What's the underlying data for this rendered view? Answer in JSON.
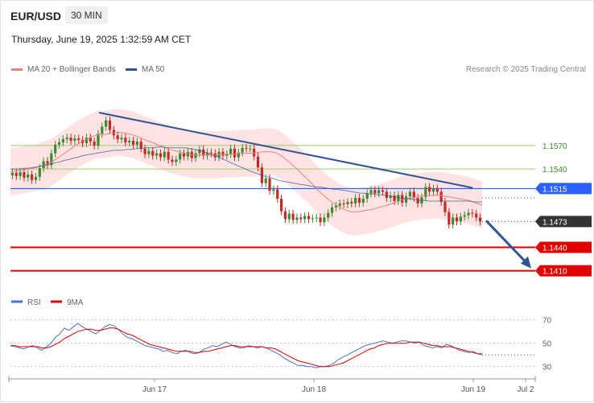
{
  "header": {
    "symbol": "EUR/USD",
    "timeframe": "30 MIN",
    "datetime": "Thursday, June 19, 2025 1:32:59 AM CET"
  },
  "legend": {
    "ma20_label": "MA 20 + Bollinger Bands",
    "ma50_label": "MA 50",
    "credit": "Research © 2025 Trading Central"
  },
  "colors": {
    "ma20": "#f08080",
    "ma50": "#2f5597",
    "bull": "#3a8a2e",
    "bear": "#c62828",
    "resistance": "#9ccc65",
    "pivot": "#2962ff",
    "support": "#e00000",
    "rsi": "#4a72d8",
    "rsi_ma": "#e00000",
    "trendline": "#2f5597"
  },
  "chart_data": [
    {
      "type": "line",
      "title": "",
      "x_tick_labels": [
        "Jun 17",
        "Jun 18",
        "Jun 19",
        "Jul 2"
      ],
      "ylim": [
        1.1385,
        1.165
      ],
      "levels": [
        {
          "name": "resistance_2",
          "value": 1.157,
          "label": "1.1570"
        },
        {
          "name": "resistance_1",
          "value": 1.154,
          "label": "1.1540"
        },
        {
          "name": "pivot",
          "value": 1.1515,
          "label": "1.1515"
        },
        {
          "name": "last_price",
          "value": 1.1473,
          "label": "1.1473"
        },
        {
          "name": "support_1",
          "value": 1.144,
          "label": "1.1440"
        },
        {
          "name": "support_2",
          "value": 1.141,
          "label": "1.1410"
        }
      ],
      "closes": [
        1.1535,
        1.1531,
        1.1536,
        1.1529,
        1.1533,
        1.1526,
        1.153,
        1.1541,
        1.155,
        1.1545,
        1.156,
        1.1571,
        1.1574,
        1.1578,
        1.158,
        1.1576,
        1.1579,
        1.1577,
        1.1573,
        1.158,
        1.1575,
        1.157,
        1.1585,
        1.1594,
        1.1602,
        1.159,
        1.1583,
        1.1578,
        1.158,
        1.1574,
        1.1576,
        1.1571,
        1.1575,
        1.1566,
        1.1559,
        1.1563,
        1.1557,
        1.156,
        1.1555,
        1.1562,
        1.1552,
        1.1549,
        1.1552,
        1.156,
        1.1556,
        1.1562,
        1.1554,
        1.156,
        1.1565,
        1.1557,
        1.1561,
        1.156,
        1.1555,
        1.1562,
        1.1557,
        1.1559,
        1.1566,
        1.1555,
        1.1561,
        1.1567,
        1.1566,
        1.1566,
        1.1556,
        1.1542,
        1.1522,
        1.1528,
        1.1512,
        1.1514,
        1.1502,
        1.1486,
        1.1476,
        1.1483,
        1.1475,
        1.1478,
        1.1476,
        1.148,
        1.1476,
        1.1477,
        1.1478,
        1.1472,
        1.1478,
        1.1484,
        1.1491,
        1.1493,
        1.1496,
        1.1495,
        1.1498,
        1.1496,
        1.1503,
        1.1497,
        1.1502,
        1.1509,
        1.1513,
        1.1509,
        1.1513,
        1.1511,
        1.1503,
        1.1506,
        1.1499,
        1.1507,
        1.1497,
        1.1505,
        1.1511,
        1.1503,
        1.1496,
        1.1504,
        1.1517,
        1.1511,
        1.1515,
        1.1511,
        1.1498,
        1.1485,
        1.1469,
        1.1478,
        1.1473,
        1.1479,
        1.1481,
        1.1484,
        1.1483,
        1.1478,
        1.1473
      ],
      "ma20": [
        1.1536,
        1.1537,
        1.1538,
        1.1539,
        1.154,
        1.1541,
        1.1542,
        1.1544,
        1.1546,
        1.1548,
        1.1552,
        1.1556,
        1.156,
        1.1564,
        1.1568,
        1.1572,
        1.1575,
        1.1578,
        1.1581,
        1.1583,
        1.1584,
        1.1584,
        1.1585,
        1.1586,
        1.1587,
        1.1586,
        1.1585,
        1.1584,
        1.1582,
        1.158,
        1.1577,
        1.1575,
        1.1573,
        1.157,
        1.1568,
        1.1566,
        1.1564,
        1.1563,
        1.1561,
        1.156,
        1.1559,
        1.1558,
        1.1558,
        1.1558,
        1.1558,
        1.1558,
        1.1558,
        1.1559,
        1.1559,
        1.1559,
        1.1559,
        1.156,
        1.156,
        1.156,
        1.156,
        1.1561,
        1.1562,
        1.1562,
        1.1562,
        1.1561,
        1.1558,
        1.1554,
        1.1549,
        1.1544,
        1.1539,
        1.1533,
        1.1528,
        1.1522,
        1.1516,
        1.151,
        1.1505,
        1.15,
        1.1496,
        1.1492,
        1.1489,
        1.1487,
        1.1485,
        1.1485,
        1.1486,
        1.1487,
        1.1488,
        1.1489,
        1.1491,
        1.1492,
        1.1494,
        1.1496,
        1.1498,
        1.15,
        1.1502,
        1.1503,
        1.1504,
        1.1505,
        1.1506,
        1.1506,
        1.1506,
        1.1507,
        1.1506,
        1.1505,
        1.1504,
        1.1503,
        1.1502,
        1.1501,
        1.15,
        1.1498,
        1.1496,
        1.1494
      ],
      "ma50": [
        1.154,
        1.154,
        1.154,
        1.1541,
        1.1541,
        1.1542,
        1.1543,
        1.1544,
        1.1545,
        1.1546,
        1.1548,
        1.1549,
        1.1551,
        1.1552,
        1.1554,
        1.1555,
        1.1557,
        1.1558,
        1.1559,
        1.156,
        1.1561,
        1.1562,
        1.1563,
        1.1564,
        1.1564,
        1.1564,
        1.1565,
        1.1565,
        1.1566,
        1.1566,
        1.1567,
        1.1567,
        1.1567,
        1.1568,
        1.1568,
        1.1567,
        1.1567,
        1.1567,
        1.1567,
        1.1567,
        1.1566,
        1.1565,
        1.1564,
        1.1562,
        1.156,
        1.1558,
        1.1556,
        1.1553,
        1.1551,
        1.1548,
        1.1546,
        1.1543,
        1.1541,
        1.1538,
        1.1536,
        1.1534,
        1.1532,
        1.153,
        1.1529,
        1.1527,
        1.1525,
        1.1524,
        1.1523,
        1.1522,
        1.1521,
        1.152,
        1.1519,
        1.1518,
        1.1517,
        1.1517,
        1.1516,
        1.1515,
        1.1514,
        1.1514,
        1.1513,
        1.1512,
        1.1511,
        1.151,
        1.1509,
        1.1509,
        1.1508,
        1.1508,
        1.1507,
        1.1507,
        1.1506,
        1.1505,
        1.1504,
        1.1503,
        1.1502,
        1.1502,
        1.1501,
        1.15,
        1.15,
        1.1499,
        1.1499,
        1.1499,
        1.1499,
        1.1499,
        1.1499,
        1.1499,
        1.1499,
        1.1499,
        1.1499,
        1.1498,
        1.1498,
        1.1498
      ],
      "bollinger_width": 0.003,
      "trendline": [
        {
          "x": 0.1875,
          "y": 1.1612
        },
        {
          "x": 0.98,
          "y": 1.1516
        }
      ],
      "projection_target": 1.141
    },
    {
      "type": "line",
      "name": "RSI",
      "legend": [
        "RSI",
        "9MA"
      ],
      "ylim": [
        25,
        78
      ],
      "y_ticks": [
        70,
        50,
        30
      ],
      "rsi": [
        48,
        47,
        46,
        45,
        47,
        48,
        46,
        44,
        47,
        50,
        55,
        58,
        63,
        61,
        64,
        67,
        64,
        62,
        60,
        58,
        61,
        64,
        66,
        65,
        62,
        58,
        55,
        54,
        52,
        50,
        48,
        47,
        46,
        45,
        43,
        44,
        42,
        41,
        43,
        44,
        42,
        41,
        42,
        45,
        46,
        48,
        47,
        49,
        51,
        49,
        47,
        46,
        46,
        48,
        47,
        46,
        47,
        46,
        44,
        42,
        40,
        37,
        35,
        33,
        31,
        31,
        30,
        30,
        29,
        30,
        30,
        31,
        33,
        36,
        38,
        40,
        42,
        44,
        46,
        48,
        49,
        50,
        51,
        52,
        51,
        50,
        51,
        52,
        52,
        51,
        50,
        51,
        48,
        47,
        46,
        47,
        46,
        49,
        48,
        46,
        44,
        43,
        42,
        43,
        41,
        40
      ],
      "rsi_ma": [
        48,
        48,
        47,
        47,
        47,
        47,
        47,
        46,
        46,
        47,
        49,
        51,
        54,
        56,
        58,
        60,
        61,
        62,
        62,
        61,
        61,
        62,
        63,
        63,
        62,
        60,
        58,
        57,
        55,
        53,
        51,
        49,
        48,
        47,
        46,
        45,
        44,
        43,
        43,
        43,
        43,
        42,
        42,
        43,
        43,
        44,
        45,
        46,
        47,
        48,
        48,
        47,
        47,
        47,
        47,
        47,
        47,
        46,
        46,
        45,
        43,
        41,
        39,
        37,
        35,
        34,
        33,
        32,
        31,
        30,
        30,
        30,
        31,
        32,
        33,
        35,
        37,
        39,
        41,
        43,
        45,
        46,
        48,
        49,
        50,
        50,
        50,
        50,
        50,
        51,
        51,
        51,
        50,
        49,
        48,
        48,
        47,
        47,
        47,
        46,
        45,
        44,
        43,
        42,
        41,
        41
      ]
    }
  ]
}
